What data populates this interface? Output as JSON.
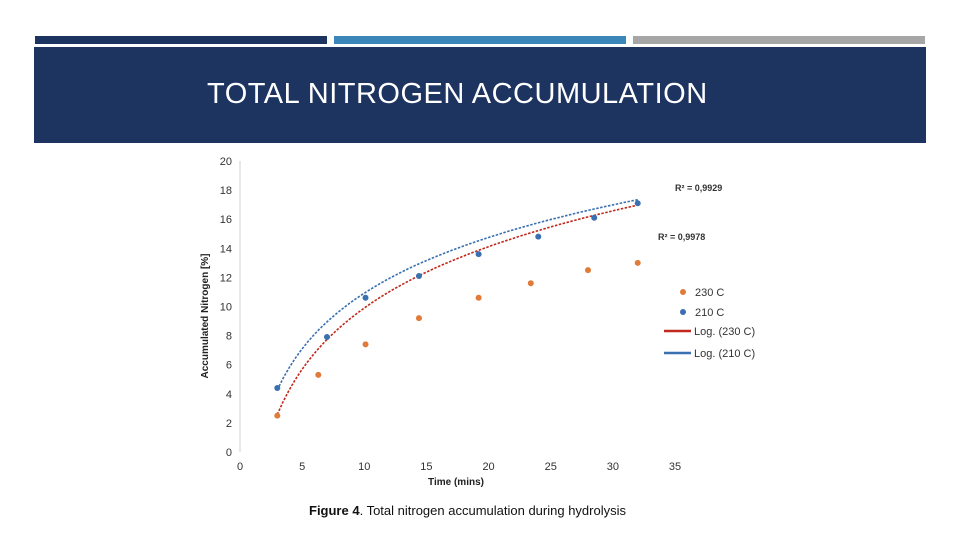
{
  "slide": {
    "title": "TOTAL NITROGEN ACCUMULATION",
    "stripe_colors": [
      "#1d3461",
      "#3b86b8",
      "#a6a6a6"
    ],
    "header_color": "#1d3461"
  },
  "caption": {
    "label": "Figure 4",
    "text": ". Total nitrogen accumulation during hydrolysis"
  },
  "chart_data": {
    "type": "scatter",
    "xlabel": "Time (mins)",
    "ylabel": "Accumulated Nitrogen [%]",
    "xlim": [
      0,
      35
    ],
    "ylim": [
      0,
      20
    ],
    "xticks": [
      0,
      5,
      10,
      15,
      20,
      25,
      30,
      35
    ],
    "yticks": [
      0,
      2,
      4,
      6,
      8,
      10,
      12,
      14,
      16,
      18,
      20
    ],
    "grid": false,
    "legend_position": "right",
    "series": [
      {
        "name": "230 C",
        "color": "#e07b39",
        "x": [
          3,
          6.3,
          10.1,
          14.4,
          19.2,
          23.4,
          28,
          32
        ],
        "y": [
          2.5,
          5.3,
          7.4,
          9.2,
          10.6,
          11.6,
          12.5,
          13
        ]
      },
      {
        "name": "210 C",
        "color": "#3a6fb0",
        "x": [
          3,
          7,
          10.1,
          14.4,
          19.2,
          24,
          28.5,
          32
        ],
        "y": [
          4.4,
          7.9,
          10.6,
          12.1,
          13.6,
          14.8,
          16.1,
          17.1
        ]
      }
    ],
    "trendlines": [
      {
        "name": "Log. (230 C)",
        "color": "#c0291c",
        "a": 6.079,
        "b": -4.1,
        "x_range": [
          3,
          32
        ],
        "r2": "R² = 0,9978"
      },
      {
        "name": "Log. (210 C)",
        "color": "#3a6fb0",
        "a": 5.523,
        "b": -1.8,
        "x_range": [
          3,
          32
        ],
        "r2": "R² = 0,9929"
      }
    ]
  }
}
